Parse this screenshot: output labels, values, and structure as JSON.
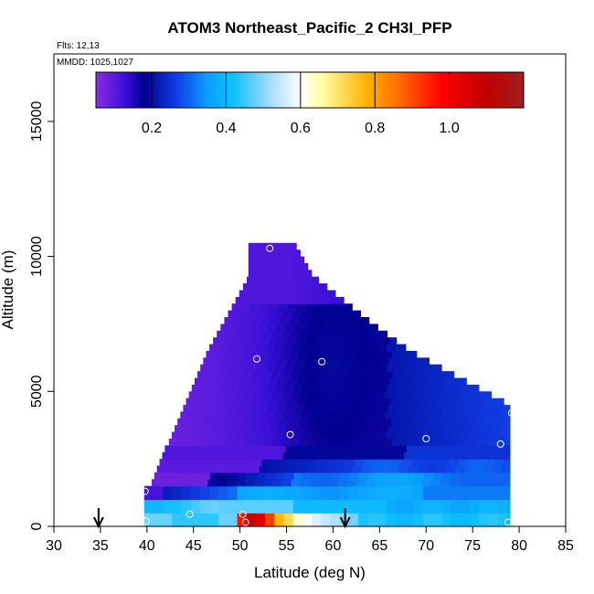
{
  "chart_data": {
    "type": "heatmap",
    "title": "ATOM3 Northeast_Pacific_2 CH3I_PFP",
    "flights_label": "Flts: 12,13",
    "dates_label": "MMDD: 1025,1027",
    "xlabel": "Latitude (deg N)",
    "ylabel": "Altitude (m)",
    "xlim": [
      30,
      85
    ],
    "ylim": [
      0,
      17500
    ],
    "x_ticks": [
      30,
      35,
      40,
      45,
      50,
      55,
      60,
      65,
      70,
      75,
      80,
      85
    ],
    "x_tick_labels": [
      "30",
      "35",
      "40",
      "45",
      "50",
      "55",
      "60",
      "65",
      "70",
      "75",
      "80",
      "85"
    ],
    "y_ticks": [
      0,
      5000,
      10000,
      15000
    ],
    "y_tick_labels": [
      "0",
      "5000",
      "10000",
      "15000"
    ],
    "colorbar": {
      "range": [
        0.05,
        1.2
      ],
      "ticks": [
        0.2,
        0.4,
        0.6,
        0.8,
        1.0
      ],
      "tick_labels": [
        "0.2",
        "0.4",
        "0.6",
        "0.8",
        "1.0"
      ],
      "stops": [
        {
          "v": 0.05,
          "color": "#8a2be2"
        },
        {
          "v": 0.13,
          "color": "#3a10d8"
        },
        {
          "v": 0.18,
          "color": "#000090"
        },
        {
          "v": 0.27,
          "color": "#1040e8"
        },
        {
          "v": 0.35,
          "color": "#0aa0ff"
        },
        {
          "v": 0.42,
          "color": "#10c0ff"
        },
        {
          "v": 0.52,
          "color": "#a8dcff"
        },
        {
          "v": 0.6,
          "color": "#fefeff"
        },
        {
          "v": 0.66,
          "color": "#ffffa0"
        },
        {
          "v": 0.78,
          "color": "#ffb000"
        },
        {
          "v": 0.86,
          "color": "#ff7000"
        },
        {
          "v": 0.98,
          "color": "#ff0000"
        },
        {
          "v": 1.1,
          "color": "#c00000"
        },
        {
          "v": 1.2,
          "color": "#a02020"
        }
      ]
    },
    "sample_points": [
      {
        "lat": 53.2,
        "alt": 10300
      },
      {
        "lat": 51.8,
        "alt": 6200
      },
      {
        "lat": 58.8,
        "alt": 6100
      },
      {
        "lat": 55.4,
        "alt": 3400
      },
      {
        "lat": 70.0,
        "alt": 3250
      },
      {
        "lat": 79.2,
        "alt": 4200
      },
      {
        "lat": 78.0,
        "alt": 3050
      },
      {
        "lat": 39.8,
        "alt": 1300
      },
      {
        "lat": 44.6,
        "alt": 450
      },
      {
        "lat": 50.3,
        "alt": 450
      },
      {
        "lat": 50.6,
        "alt": 150
      },
      {
        "lat": 78.8,
        "alt": 150
      },
      {
        "lat": 39.9,
        "alt": 200
      }
    ],
    "arrows": [
      {
        "lat": 34.8
      },
      {
        "lat": 61.3
      }
    ]
  }
}
